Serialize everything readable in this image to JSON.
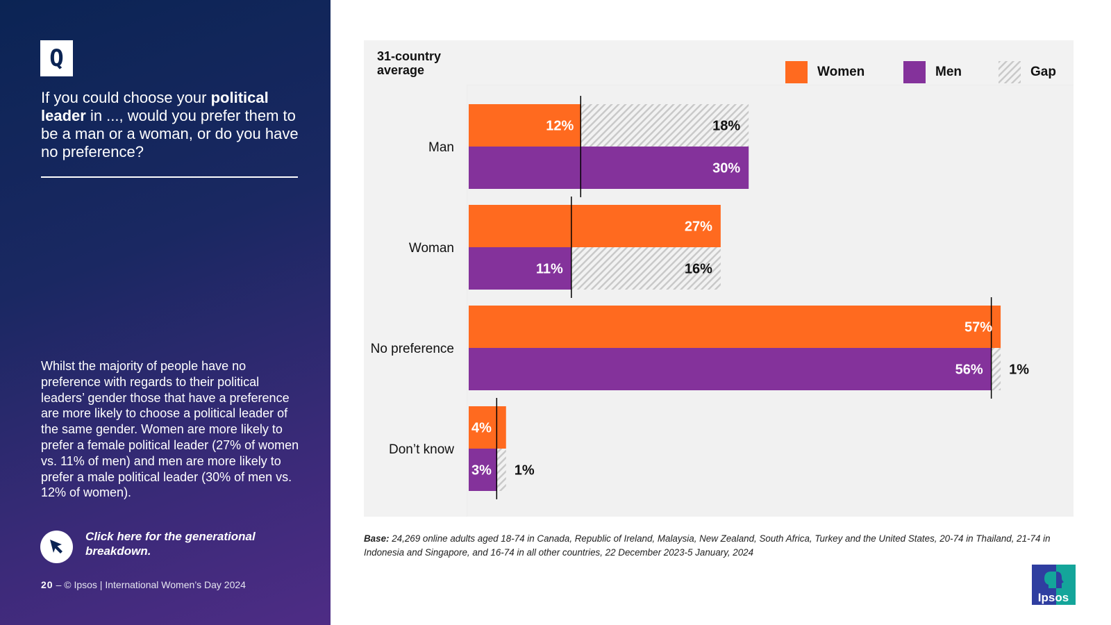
{
  "left_panel": {
    "q_badge": "Q",
    "question": {
      "part1": "If you could choose your ",
      "bold1": "political leader",
      "part2": " in ..., would you prefer them to be a man or a woman, or do you have no preference?"
    },
    "summary": "Whilst the majority of people have no preference with regards to their political leaders’ gender those that have a preference are more likely to choose a political leader of the same gender. Women are more likely to prefer a female political leader (27% of women vs. 11% of men) and men are more likely to prefer a male political leader (30% of men vs. 12% of women).",
    "cta": {
      "icon": "cursor-arrow-icon",
      "label": "Click here for the generational breakdown."
    },
    "footer": {
      "page_number": "20",
      "text": "– © Ipsos | International Women’s Day 2024"
    }
  },
  "colors": {
    "women": "#ff6a1f",
    "men": "#84329b",
    "gap_stripe": "#c8c8c8",
    "panel_bg": "#f2f2f2",
    "navy": "#0b2454"
  },
  "chart_data": {
    "type": "bar",
    "orientation": "horizontal",
    "title": "31-country average",
    "xlabel": "",
    "ylabel": "",
    "xlim": [
      0,
      60
    ],
    "grid": false,
    "legend": {
      "placement": "top-right",
      "entries": [
        "Women",
        "Men",
        "Gap"
      ]
    },
    "categories": [
      "Man",
      "Woman",
      "No preference",
      "Don’t know"
    ],
    "series": [
      {
        "name": "Women",
        "values": [
          12,
          27,
          57,
          4
        ],
        "labels": [
          "12%",
          "27%",
          "57%",
          "4%"
        ]
      },
      {
        "name": "Men",
        "values": [
          30,
          11,
          56,
          3
        ],
        "labels": [
          "30%",
          "11%",
          "56%",
          "3%"
        ]
      }
    ],
    "gap": {
      "name": "Gap",
      "values": [
        18,
        16,
        1,
        1
      ],
      "labels": [
        "18%",
        "16%",
        "1%",
        "1%"
      ],
      "on_row": [
        "Women",
        "Men",
        "Men",
        "Men"
      ]
    }
  },
  "base_note": {
    "label": "Base:",
    "text": " 24,269 online adults aged 18-74 in Canada, Republic of Ireland, Malaysia, New Zealand, South Africa, Turkey and the United States, 20-74 in Thailand, 21-74 in Indonesia and Singapore, and 16-74 in all other countries, 22 December 2023-5 January, 2024"
  },
  "logo": {
    "text": "Ipsos"
  }
}
